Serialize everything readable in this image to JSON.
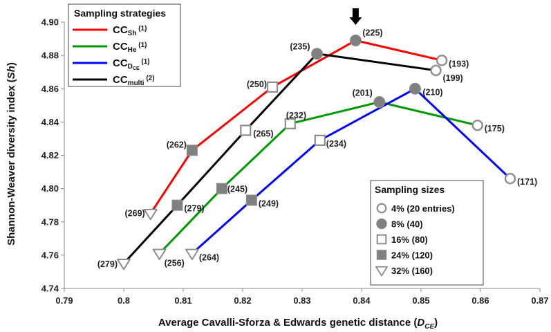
{
  "chart_data": {
    "type": "line",
    "ylabel_parts": [
      "Shannon-Weaver diversity index  (",
      "Sh",
      ")"
    ],
    "xlabel_parts": [
      "Average Cavalli-Sforza & Edwards genetic distance (",
      "D",
      "CE",
      ")"
    ],
    "xlim": [
      0.79,
      0.87
    ],
    "ylim": [
      4.74,
      4.9
    ],
    "x_ticks": [
      0.79,
      0.8,
      0.81,
      0.82,
      0.83,
      0.84,
      0.85,
      0.86,
      0.87
    ],
    "y_ticks": [
      4.74,
      4.76,
      4.78,
      4.8,
      4.82,
      4.84,
      4.86,
      4.88,
      4.9
    ],
    "x_tick_labels": [
      "0.79",
      "0.8",
      "0.81",
      "0.82",
      "0.83",
      "0.84",
      "0.85",
      "0.86",
      "0.87"
    ],
    "y_tick_labels": [
      "4.74",
      "4.76",
      "4.78",
      "4.80",
      "4.82",
      "4.84",
      "4.86",
      "4.88",
      "4.90"
    ],
    "grid": false,
    "legend_title": "Sampling strategies",
    "legend_position": "top-left",
    "size_legend_title": "Sampling sizes",
    "size_legend_position": "bottom-right",
    "marker_colors": {
      "outline": "#8c8c8c",
      "fill": "#808080",
      "hollow": "#ffffff"
    },
    "series": [
      {
        "legend_parts": {
          "main": "CC",
          "sub": "Sh",
          "sup": " (1)"
        },
        "color": "#ff0000",
        "points": [
          {
            "x": 0.8045,
            "y": 4.785,
            "size": "32",
            "label": "(269)"
          },
          {
            "x": 0.8115,
            "y": 4.823,
            "size": "24",
            "label": "(262)"
          },
          {
            "x": 0.825,
            "y": 4.861,
            "size": "16",
            "label": "(250)"
          },
          {
            "x": 0.839,
            "y": 4.889,
            "size": "8",
            "label": "(225)"
          },
          {
            "x": 0.8535,
            "y": 4.877,
            "size": "4",
            "label": "(193)"
          }
        ]
      },
      {
        "legend_parts": {
          "main": "CC",
          "sub": "He",
          "sup": " (1)"
        },
        "color": "#009900",
        "points": [
          {
            "x": 0.806,
            "y": 4.761,
            "size": "32",
            "label": "(256)"
          },
          {
            "x": 0.8165,
            "y": 4.8,
            "size": "24",
            "label": "(245)"
          },
          {
            "x": 0.828,
            "y": 4.839,
            "size": "16",
            "label": "(232)"
          },
          {
            "x": 0.843,
            "y": 4.852,
            "size": "8",
            "label": "(201)"
          },
          {
            "x": 0.8595,
            "y": 4.838,
            "size": "4",
            "label": "(175)"
          }
        ]
      },
      {
        "legend_parts": {
          "main": "CC",
          "sub": "D",
          "subsub": "CE",
          "sup": " (1)"
        },
        "color": "#0000ff",
        "points": [
          {
            "x": 0.8115,
            "y": 4.761,
            "size": "32",
            "label": "(264)"
          },
          {
            "x": 0.8215,
            "y": 4.793,
            "size": "24",
            "label": "(249)"
          },
          {
            "x": 0.833,
            "y": 4.829,
            "size": "16",
            "label": "(234)"
          },
          {
            "x": 0.849,
            "y": 4.86,
            "size": "8",
            "label": "(210)"
          },
          {
            "x": 0.865,
            "y": 4.806,
            "size": "4",
            "label": "(171)"
          }
        ]
      },
      {
        "legend_parts": {
          "main": "CC",
          "sub": "multi",
          "sup": " (2)"
        },
        "color": "#000000",
        "points": [
          {
            "x": 0.8,
            "y": 4.755,
            "size": "32",
            "label": "(279)"
          },
          {
            "x": 0.809,
            "y": 4.79,
            "size": "24",
            "label": "(279)"
          },
          {
            "x": 0.8205,
            "y": 4.835,
            "size": "16",
            "label": "(265)"
          },
          {
            "x": 0.8325,
            "y": 4.881,
            "size": "8",
            "label": "(235)"
          },
          {
            "x": 0.8525,
            "y": 4.871,
            "size": "4",
            "label": "(199)"
          }
        ]
      }
    ],
    "sampling_sizes": [
      {
        "key": "4",
        "marker": "circle-hollow",
        "label": "4% (20 entries)"
      },
      {
        "key": "8",
        "marker": "circle-filled",
        "label": "8% (40)"
      },
      {
        "key": "16",
        "marker": "square-hollow",
        "label": "16% (80)"
      },
      {
        "key": "24",
        "marker": "square-filled",
        "label": "24% (120)"
      },
      {
        "key": "32",
        "marker": "triangle-hollow",
        "label": "32% (160)"
      }
    ],
    "annotations": [
      {
        "type": "arrow-down",
        "x": 0.839,
        "target_label": "(225)"
      }
    ]
  }
}
